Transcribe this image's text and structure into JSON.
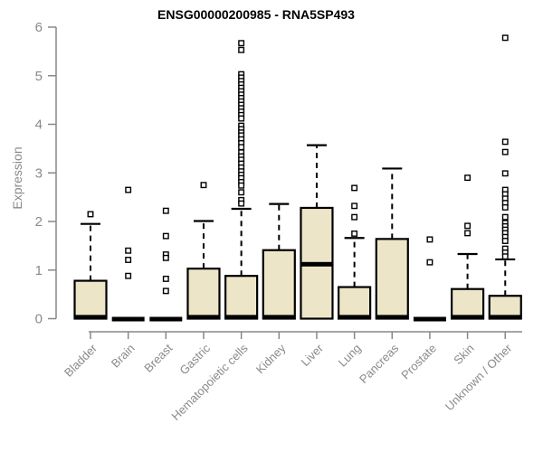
{
  "chart_data": {
    "type": "boxplot",
    "title": "ENSG00000200985 - RNA5SP493",
    "ylabel": "Expression",
    "xlabel": "",
    "ylim": [
      0,
      6
    ],
    "yticks": [
      0,
      1,
      2,
      3,
      4,
      5,
      6
    ],
    "grid": false,
    "legend": "none",
    "colors": {
      "box_fill": "#ece5c8",
      "box_stroke": "#000000",
      "median": "#000000",
      "whisker": "#000000",
      "outlier_stroke": "#000000",
      "outlier_fill": "#ffffff",
      "axis": "#888888",
      "tick_label": "#8a8a8a",
      "title": "#000000",
      "background": "#ffffff"
    },
    "categories": [
      "Bladder",
      "Brain",
      "Breast",
      "Gastric",
      "Hematopoietic cells",
      "Kidney",
      "Liver",
      "Lung",
      "Pancreas",
      "Prostate",
      "Skin",
      "Unknown / Other"
    ],
    "series": [
      {
        "category": "Bladder",
        "q1": 0,
        "median": 0.03,
        "q3": 0.78,
        "whisker_low": 0,
        "whisker_high": 1.95,
        "outliers": [
          2.15
        ]
      },
      {
        "category": "Brain",
        "q1": 0,
        "median": 0,
        "q3": 0,
        "whisker_low": 0,
        "whisker_high": 0,
        "outliers": [
          2.65,
          1.4,
          1.21,
          0.88
        ]
      },
      {
        "category": "Breast",
        "q1": 0,
        "median": 0,
        "q3": 0,
        "whisker_low": 0,
        "whisker_high": 0,
        "outliers": [
          2.22,
          1.7,
          1.32,
          1.25,
          0.82,
          0.57
        ]
      },
      {
        "category": "Gastric",
        "q1": 0,
        "median": 0.03,
        "q3": 1.03,
        "whisker_low": 0,
        "whisker_high": 2.01,
        "outliers": [
          2.75
        ]
      },
      {
        "category": "Hematopoietic cells",
        "q1": 0,
        "median": 0.03,
        "q3": 0.88,
        "whisker_low": 0,
        "whisker_high": 2.26,
        "outliers": [
          5.67,
          5.53,
          5.03,
          4.96,
          4.89,
          4.82,
          4.75,
          4.68,
          4.61,
          4.54,
          4.47,
          4.4,
          4.33,
          4.26,
          4.19,
          4.12,
          3.97,
          3.9,
          3.83,
          3.77,
          3.69,
          3.61,
          3.53,
          3.42,
          3.34,
          3.27,
          3.19,
          3.11,
          3.03,
          2.96,
          2.89,
          2.81,
          2.74,
          2.6,
          2.44,
          2.37
        ]
      },
      {
        "category": "Kidney",
        "q1": 0,
        "median": 0.03,
        "q3": 1.41,
        "whisker_low": 0,
        "whisker_high": 2.36,
        "outliers": []
      },
      {
        "category": "Liver",
        "q1": 0,
        "median": 1.12,
        "q3": 2.28,
        "whisker_low": 0,
        "whisker_high": 3.57,
        "outliers": []
      },
      {
        "category": "Lung",
        "q1": 0,
        "median": 0.03,
        "q3": 0.65,
        "whisker_low": 0,
        "whisker_high": 1.66,
        "outliers": [
          2.69,
          2.32,
          2.09,
          1.75
        ]
      },
      {
        "category": "Pancreas",
        "q1": 0,
        "median": 0.03,
        "q3": 1.64,
        "whisker_low": 0,
        "whisker_high": 3.09,
        "outliers": []
      },
      {
        "category": "Prostate",
        "q1": 0,
        "median": 0,
        "q3": 0,
        "whisker_low": 0,
        "whisker_high": 0,
        "outliers": [
          1.63,
          1.16
        ]
      },
      {
        "category": "Skin",
        "q1": 0,
        "median": 0.03,
        "q3": 0.61,
        "whisker_low": 0,
        "whisker_high": 1.33,
        "outliers": [
          2.9,
          1.91,
          1.76
        ]
      },
      {
        "category": "Unknown / Other",
        "q1": 0,
        "median": 0.03,
        "q3": 0.47,
        "whisker_low": 0,
        "whisker_high": 1.22,
        "outliers": [
          5.78,
          3.64,
          3.43,
          2.99,
          2.65,
          2.56,
          2.47,
          2.38,
          2.29,
          2.09,
          1.97,
          1.9,
          1.83,
          1.76,
          1.68,
          1.6,
          1.44,
          1.36,
          1.28
        ]
      }
    ]
  }
}
